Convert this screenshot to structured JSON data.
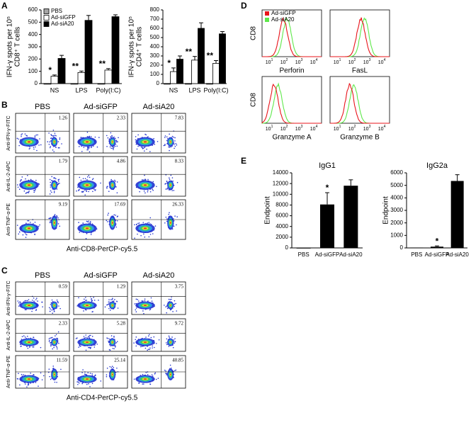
{
  "panel_labels": [
    "A",
    "B",
    "C",
    "D",
    "E"
  ],
  "chart_data": [
    {
      "type": "bar",
      "categories": [
        "NS",
        "LPS",
        "Poly(I:C)"
      ],
      "y_label": [
        "IFN-γ spots per 10⁵",
        "CD8⁺ T cells"
      ],
      "series": [
        {
          "name": "PBS",
          "color": "#a6a6a6",
          "values": [
            0,
            0,
            0
          ],
          "errors": [
            0,
            0,
            0
          ]
        },
        {
          "name": "Ad-siGFP",
          "color": "#ffffff",
          "values": [
            60,
            90,
            110
          ],
          "errors": [
            10,
            12,
            12
          ]
        },
        {
          "name": "Ad-siA20",
          "color": "#000000",
          "values": [
            205,
            515,
            545
          ],
          "errors": [
            25,
            40,
            15
          ]
        }
      ],
      "annotations": [
        {
          "text": "*",
          "category": "NS",
          "series": "Ad-siGFP"
        },
        {
          "text": "**",
          "category": "LPS",
          "series": "Ad-siGFP"
        },
        {
          "text": "**",
          "category": "Poly(I:C)",
          "series": "Ad-siGFP"
        }
      ],
      "ylim": [
        0,
        600
      ],
      "yticks": [
        0,
        100,
        200,
        300,
        400,
        500,
        600
      ],
      "legend": "upper left"
    },
    {
      "type": "bar",
      "categories": [
        "NS",
        "LPS",
        "Poly(I:C)"
      ],
      "y_label": [
        "IFN-γ spots per 10⁵",
        "CD4⁺ T cells"
      ],
      "series": [
        {
          "name": "PBS",
          "color": "#a6a6a6",
          "values": [
            0,
            0,
            0
          ],
          "errors": [
            0,
            0,
            0
          ]
        },
        {
          "name": "Ad-siGFP",
          "color": "#ffffff",
          "values": [
            130,
            255,
            220
          ],
          "errors": [
            40,
            40,
            30
          ]
        },
        {
          "name": "Ad-siA20",
          "color": "#000000",
          "values": [
            265,
            600,
            540
          ],
          "errors": [
            35,
            60,
            25
          ]
        }
      ],
      "annotations": [
        {
          "text": "*",
          "category": "NS",
          "series": "Ad-siGFP"
        },
        {
          "text": "**",
          "category": "LPS",
          "series": "Ad-siGFP"
        },
        {
          "text": "**",
          "category": "Poly(I:C)",
          "series": "Ad-siGFP"
        }
      ],
      "ylim": [
        0,
        800
      ],
      "yticks": [
        0,
        100,
        200,
        300,
        400,
        500,
        600,
        700,
        800
      ]
    },
    {
      "type": "bar",
      "title": "IgG1",
      "categories": [
        "PBS",
        "Ad-siGFP",
        "Ad-siA20"
      ],
      "y_label": [
        "Endpoint"
      ],
      "color": "#000000",
      "values": [
        0,
        8100,
        11600
      ],
      "errors": [
        0,
        2200,
        1100
      ],
      "annotations": [
        {
          "text": "*",
          "category": "Ad-siGFP"
        }
      ],
      "ylim": [
        0,
        14000
      ],
      "yticks": [
        0,
        2000,
        4000,
        6000,
        8000,
        10000,
        12000,
        14000
      ]
    },
    {
      "type": "bar",
      "title": "IgG2a",
      "categories": [
        "PBS",
        "Ad-siGFP",
        "Ad-siA20"
      ],
      "y_label": [
        "Endpoint"
      ],
      "color": "#000000",
      "values": [
        30,
        100,
        5350
      ],
      "errors": [
        0,
        60,
        500
      ],
      "annotations": [
        {
          "text": "*",
          "category": "Ad-siGFP"
        }
      ],
      "ylim": [
        0,
        6000
      ],
      "yticks": [
        0,
        1000,
        2000,
        3000,
        4000,
        5000,
        6000
      ]
    }
  ],
  "flow_b": {
    "columns": [
      "PBS",
      "Ad-siGFP",
      "Ad-siA20"
    ],
    "rows": [
      "Anti-IFN-γ-FITC",
      "Anti-IL-2-APC",
      "Anti-TNF-α-PE"
    ],
    "percentages": [
      [
        1.26,
        2.33,
        7.83
      ],
      [
        1.79,
        4.86,
        8.33
      ],
      [
        9.19,
        17.69,
        26.33
      ]
    ],
    "x_label": "Anti-CD8-PerCP-cy5.5"
  },
  "flow_c": {
    "columns": [
      "PBS",
      "Ad-siGFP",
      "Ad-siA20"
    ],
    "rows": [
      "Anti-IFN-γ-FITC",
      "Anti-IL-2-APC",
      "Anti-TNF-α-PE"
    ],
    "percentages": [
      [
        0.59,
        1.29,
        3.75
      ],
      [
        2.33,
        5.28,
        9.72
      ],
      [
        11.59,
        25.14,
        40.85
      ]
    ],
    "x_label": "Anti-CD4-PerCP-cy5.5"
  },
  "histograms": {
    "y_label": "CD8",
    "legend": [
      {
        "name": "Ad-siGFP",
        "color": "#e8141b"
      },
      {
        "name": "Ad-siA20",
        "color": "#5ee84a"
      }
    ],
    "x_ticks": [
      {
        "base": "10",
        "exp": "1"
      },
      {
        "base": "10",
        "exp": "2"
      },
      {
        "base": "10",
        "exp": "3"
      },
      {
        "base": "10",
        "exp": "4"
      }
    ],
    "panels": [
      "Perforin",
      "FasL",
      "Granzyme A",
      "Granzyme B"
    ]
  }
}
